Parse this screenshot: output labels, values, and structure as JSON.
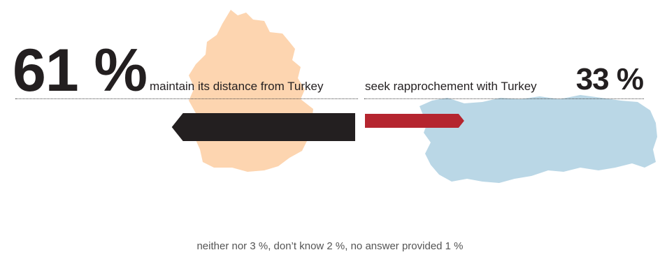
{
  "chart_data": {
    "type": "bar",
    "categories": [
      "maintain its distance from Turkey",
      "seek rapprochement with Turkey"
    ],
    "values": [
      61,
      33
    ],
    "value_labels": [
      "61 %",
      "33 %"
    ],
    "colors": [
      "#231f20",
      "#b5252f"
    ],
    "footnote": "neither nor 3 %, don’t know 2 %, no answer provided 1 %"
  },
  "shapes": {
    "left_map_color": "#fdd5b0",
    "right_map_color": "#bad7e6",
    "left_map_icon": "germany-map-icon",
    "right_map_icon": "turkey-map-icon"
  }
}
